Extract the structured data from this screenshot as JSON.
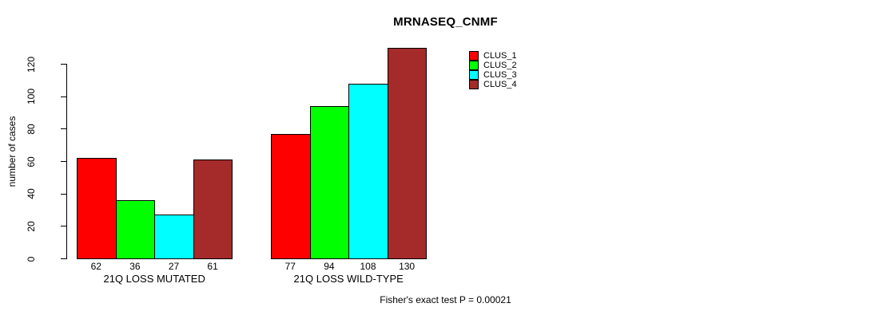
{
  "chart_data": {
    "type": "bar",
    "title": "MRNASEQ_CNMF",
    "ylabel": "number of cases",
    "xlabel": "",
    "ylim": [
      0,
      130
    ],
    "yticks": [
      0,
      20,
      40,
      60,
      80,
      100,
      120
    ],
    "grid": false,
    "legend_position": "top-right",
    "categories": [
      "21Q LOSS MUTATED",
      "21Q LOSS WILD-TYPE"
    ],
    "series": [
      {
        "name": "CLUS_1",
        "color": "#FF0000",
        "values": [
          62,
          77
        ]
      },
      {
        "name": "CLUS_2",
        "color": "#00FF00",
        "values": [
          36,
          94
        ]
      },
      {
        "name": "CLUS_3",
        "color": "#00FFFF",
        "values": [
          27,
          108
        ]
      },
      {
        "name": "CLUS_4",
        "color": "#A52A2A",
        "values": [
          61,
          130
        ]
      }
    ],
    "bar_value_labels": [
      [
        62,
        36,
        27,
        61
      ],
      [
        77,
        94,
        108,
        130
      ]
    ],
    "annotation": "Fisher's exact test P = 0.00021"
  }
}
